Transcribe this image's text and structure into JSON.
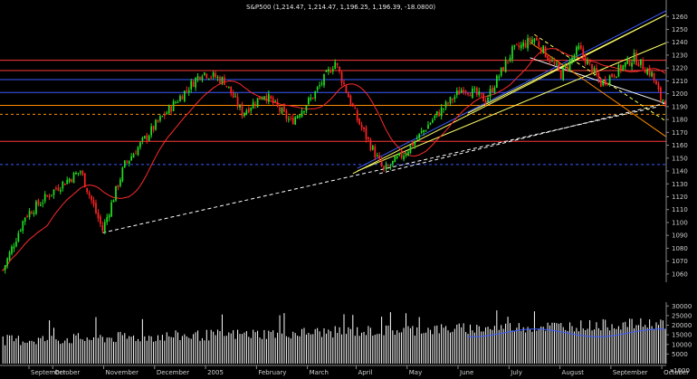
{
  "chart_data": {
    "type": "candlestick",
    "title": "S&P500 (1,214.47, 1,214.47, 1,196.25, 1,196.39, -18.0800)",
    "price_axis": {
      "ticks": [
        1060,
        1070,
        1080,
        1090,
        1100,
        1110,
        1120,
        1130,
        1140,
        1150,
        1160,
        1170,
        1180,
        1190,
        1200,
        1210,
        1220,
        1230,
        1240,
        1250,
        1260
      ],
      "ylim": [
        1055,
        1263
      ]
    },
    "volume_axis": {
      "ticks": [
        5000,
        10000,
        15000,
        20000,
        25000,
        30000
      ],
      "ylim": [
        0,
        32000
      ],
      "multiplier_label": "x1000"
    },
    "months": [
      "September",
      "October",
      "November",
      "December",
      "2005",
      "February",
      "March",
      "April",
      "May",
      "June",
      "July",
      "August",
      "September",
      "October"
    ],
    "horizontal_levels": [
      {
        "value": 1226,
        "color": "#ff3b3b",
        "style": "solid"
      },
      {
        "value": 1218,
        "color": "#ff3b3b",
        "style": "solid"
      },
      {
        "value": 1211,
        "color": "#3a5bff",
        "style": "solid"
      },
      {
        "value": 1201,
        "color": "#3a5bff",
        "style": "solid"
      },
      {
        "value": 1191,
        "color": "#ff8c00",
        "style": "solid"
      },
      {
        "value": 1184,
        "color": "#ff8c00",
        "style": "dashed"
      },
      {
        "value": 1163,
        "color": "#ff3b3b",
        "style": "solid"
      },
      {
        "value": 1145,
        "color": "#3a5bff",
        "style": "dashed"
      }
    ],
    "series": [
      {
        "name": "price",
        "kind": "candles",
        "values_close": []
      },
      {
        "name": "moving_average",
        "kind": "line",
        "color": "#ff2a2a"
      },
      {
        "name": "volume",
        "kind": "bars",
        "color": "#ffffff"
      }
    ],
    "trendlines": [
      {
        "from_index": 45,
        "from_value": 1092,
        "to_index": 296,
        "to_value": 1190,
        "color": "#ffffff",
        "style": "dashed"
      },
      {
        "from_index": 170,
        "from_value": 1138,
        "to_index": 300,
        "to_value": 1193,
        "color": "#ffffff",
        "style": "dashed"
      },
      {
        "from_index": 158,
        "from_value": 1138,
        "to_index": 300,
        "to_value": 1262,
        "color": "#ffff66",
        "style": "solid"
      },
      {
        "from_index": 160,
        "from_value": 1140,
        "to_index": 300,
        "to_value": 1240,
        "color": "#ffff66",
        "style": "solid"
      },
      {
        "from_index": 210,
        "from_value": 1185,
        "to_index": 300,
        "to_value": 1262,
        "color": "#ffff66",
        "style": "solid"
      },
      {
        "from_index": 160,
        "from_value": 1142,
        "to_index": 300,
        "to_value": 1265,
        "color": "#3a5bff",
        "style": "solid"
      },
      {
        "from_index": 238,
        "from_value": 1228,
        "to_index": 300,
        "to_value": 1192,
        "color": "#ffffff",
        "style": "solid"
      },
      {
        "from_index": 238,
        "from_value": 1240,
        "to_index": 300,
        "to_value": 1166,
        "color": "#ff8c00",
        "style": "solid"
      },
      {
        "from_index": 240,
        "from_value": 1246,
        "to_index": 300,
        "to_value": 1178,
        "color": "#ffff66",
        "style": "dashed"
      }
    ],
    "grid": false,
    "legend": "none"
  }
}
